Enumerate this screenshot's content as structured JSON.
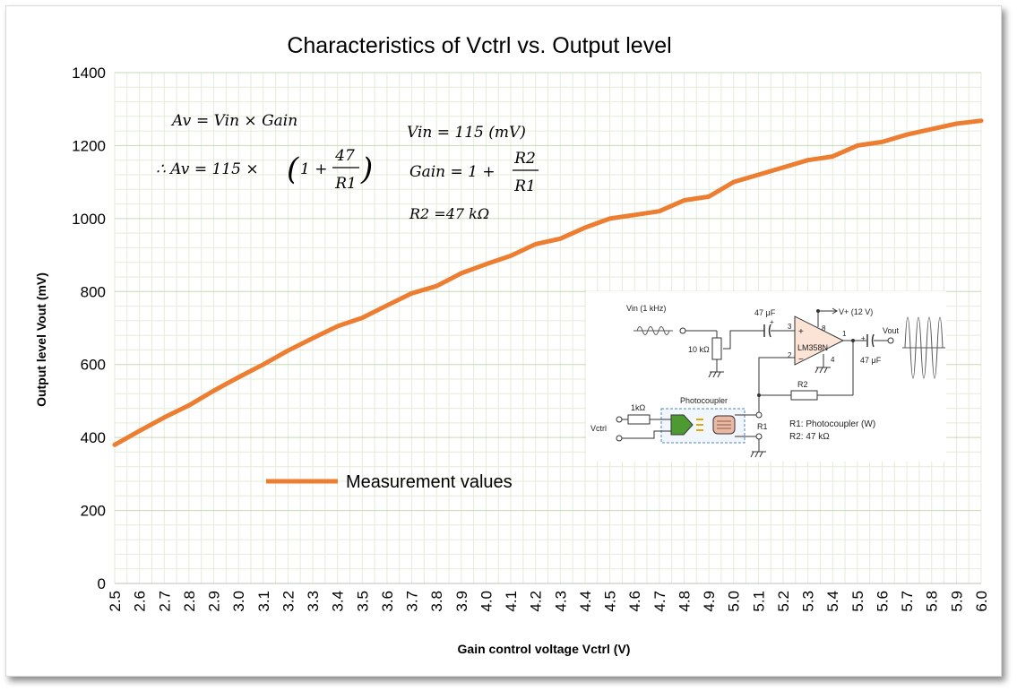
{
  "chart_data": {
    "type": "line",
    "title": "Characteristics of Vctrl vs. Output level",
    "xlabel": "Gain control voltage Vctrl (V)",
    "ylabel": "Output level Vout (mV)",
    "ylim": [
      0,
      1400
    ],
    "yticks": [
      "0",
      "200",
      "400",
      "600",
      "800",
      "1000",
      "1200",
      "1400"
    ],
    "xticks": [
      "2.5",
      "2.6",
      "2.7",
      "2.8",
      "2.9",
      "3.0",
      "3.1",
      "3.2",
      "3.3",
      "3.4",
      "3.5",
      "3.6",
      "3.7",
      "3.8",
      "3.9",
      "4.0",
      "4.1",
      "4.2",
      "4.3",
      "4.4",
      "4.5",
      "4.6",
      "4.7",
      "4.8",
      "4.9",
      "5.0",
      "5.1",
      "5.2",
      "5.3",
      "5.4",
      "5.5",
      "5.6",
      "5.7",
      "5.8",
      "5.9",
      "6.0"
    ],
    "grid": true,
    "legend_position": "bottom-left",
    "series": [
      {
        "name": "Measurement values",
        "color": "#ed7d31",
        "x": [
          2.5,
          2.6,
          2.7,
          2.8,
          2.9,
          3.0,
          3.1,
          3.2,
          3.3,
          3.4,
          3.5,
          3.6,
          3.7,
          3.8,
          3.9,
          4.0,
          4.1,
          4.2,
          4.3,
          4.4,
          4.5,
          4.6,
          4.7,
          4.8,
          4.9,
          5.0,
          5.1,
          5.2,
          5.3,
          5.4,
          5.5,
          5.6,
          5.7,
          5.8,
          5.9,
          6.0
        ],
        "values": [
          380,
          418,
          455,
          488,
          528,
          565,
          600,
          638,
          672,
          705,
          728,
          762,
          795,
          815,
          850,
          875,
          898,
          930,
          945,
          975,
          1000,
          1010,
          1020,
          1050,
          1060,
          1100,
          1120,
          1140,
          1160,
          1170,
          1200,
          1210,
          1230,
          1245,
          1260,
          1268
        ]
      }
    ]
  },
  "formulas": {
    "line1_lhs": "Av",
    "line1_rhs": "= Vin × Gain",
    "line2_prefix": "∴ Av = 115 ×",
    "line2_one": "1 +",
    "line2_num": "47",
    "line2_den": "R1",
    "vin": "Vin = 115 (mV)",
    "gain_prefix": "Gain = 1 +",
    "gain_num": "R2",
    "gain_den": "R1",
    "r2": "R2 =47 kΩ"
  },
  "circuit": {
    "vin_label": "Vin (1 kHz)",
    "cap_in_label": "47 μF",
    "supply_label": "V+ (12 V)",
    "opamp_label": "LM358N",
    "pin3": "3",
    "pin2": "2",
    "pin8": "8",
    "pin1": "1",
    "pin4": "4",
    "vout_label": "Vout",
    "cap_out_label": "47 μF",
    "pot_label": "10 kΩ",
    "r2_label": "R2",
    "photocoupler_label": "Photocoupler",
    "res_1k_label": "1kΩ",
    "vctrl_label": "Vctrl",
    "r1_label": "R1",
    "note1": "R1: Photocoupler (W)",
    "note2": "R2: 47 kΩ"
  }
}
